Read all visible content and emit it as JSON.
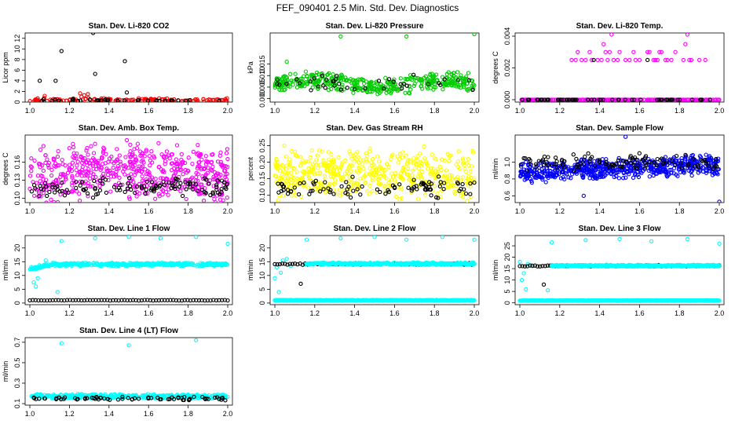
{
  "figure_title": "FEF_090401  2.5 Min. Std. Dev. Diagnostics",
  "colors": {
    "black": "#000000",
    "red": "#ff0000",
    "green": "#00cc00",
    "magenta": "#ff00ff",
    "yellow": "#ffff00",
    "blue": "#0000ff",
    "cyan": "#00ffff"
  },
  "chart_data": [
    {
      "type": "scatter",
      "title": "Stan. Dev. Li-820 CO2",
      "ylabel": "Licor ppm",
      "xlim": [
        1.0,
        2.0
      ],
      "ylim": [
        0,
        13
      ],
      "x_ticks": [
        "1.0",
        "1.2",
        "1.4",
        "1.6",
        "1.8",
        "2.0"
      ],
      "y_ticks": [
        {
          "v": 0,
          "label": "0"
        },
        {
          "v": 2,
          "label": "2"
        },
        {
          "v": 4,
          "label": "4"
        },
        {
          "v": 6,
          "label": "6"
        },
        {
          "v": 8,
          "label": "8"
        },
        {
          "v": 10,
          "label": "10"
        },
        {
          "v": 12,
          "label": "12"
        }
      ],
      "series": [
        {
          "name": "primary",
          "color": "#ff0000",
          "generator": {
            "n": 160,
            "base": 0.35,
            "spread": 0.45,
            "seed": 11,
            "clusters": [
              [
                1.25,
                1.32,
                1.6
              ],
              [
                1.07,
                1.12,
                0.9
              ]
            ]
          }
        },
        {
          "name": "reference",
          "color": "#000000",
          "generator": {
            "n": 40,
            "base": 0.3,
            "spread": 0.3,
            "seed": 21
          },
          "points": [
            [
              1.05,
              4.0
            ],
            [
              1.13,
              4.0
            ],
            [
              1.16,
              9.6
            ],
            [
              1.32,
              13.0
            ],
            [
              1.33,
              5.3
            ],
            [
              1.48,
              7.7
            ],
            [
              1.49,
              1.8
            ]
          ]
        }
      ]
    },
    {
      "type": "scatter",
      "title": "Stan. Dev. Li-820 Pressure",
      "ylabel": "kPa",
      "xlim": [
        1.0,
        2.0
      ],
      "ylim": [
        -0.0015,
        0.0285
      ],
      "x_ticks": [
        "1.0",
        "1.2",
        "1.4",
        "1.6",
        "1.8",
        "2.0"
      ],
      "y_ticks": [
        {
          "v": 0.0,
          "label": "0.000"
        },
        {
          "v": 0.005,
          "label": "0.005"
        },
        {
          "v": 0.01,
          "label": "0.010"
        },
        {
          "v": 0.015,
          "label": "0.015"
        }
      ],
      "series": [
        {
          "name": "primary",
          "color": "#00cc00",
          "generator": {
            "n": 420,
            "base": 0.0065,
            "spread": 0.0045,
            "seed": 33,
            "wave": 0.0015
          },
          "points": [
            [
              1.06,
              0.016
            ],
            [
              1.33,
              0.027
            ],
            [
              1.66,
              0.027
            ],
            [
              2.0,
              0.028
            ]
          ]
        },
        {
          "name": "reference",
          "color": "#000000",
          "generator": {
            "n": 40,
            "base": 0.0065,
            "spread": 0.004,
            "seed": 44
          }
        }
      ]
    },
    {
      "type": "scatter",
      "title": "Stan. Dev. Li-820 Temp.",
      "ylabel": "degrees C",
      "xlim": [
        1.0,
        2.0
      ],
      "ylim": [
        -0.00015,
        0.0042
      ],
      "x_ticks": [
        "1.0",
        "1.2",
        "1.4",
        "1.6",
        "1.8",
        "2.0"
      ],
      "y_ticks": [
        {
          "v": 0.0,
          "label": "0.000"
        },
        {
          "v": 0.002,
          "label": "0.002"
        },
        {
          "v": 0.004,
          "label": "0.004"
        }
      ],
      "series": [
        {
          "name": "primary",
          "color": "#ff00ff",
          "generator": {
            "n": 260,
            "base": 0.0,
            "spread": 0.0,
            "seed": 55
          },
          "points": [
            [
              1.26,
              0.0025
            ],
            [
              1.28,
              0.0025
            ],
            [
              1.29,
              0.003
            ],
            [
              1.31,
              0.0025
            ],
            [
              1.33,
              0.0025
            ],
            [
              1.35,
              0.003
            ],
            [
              1.36,
              0.0025
            ],
            [
              1.39,
              0.0025
            ],
            [
              1.41,
              0.0025
            ],
            [
              1.42,
              0.0035
            ],
            [
              1.43,
              0.003
            ],
            [
              1.44,
              0.0025
            ],
            [
              1.45,
              0.003
            ],
            [
              1.46,
              0.0041
            ],
            [
              1.47,
              0.0025
            ],
            [
              1.49,
              0.0025
            ],
            [
              1.5,
              0.003
            ],
            [
              1.53,
              0.0025
            ],
            [
              1.55,
              0.0025
            ],
            [
              1.57,
              0.003
            ],
            [
              1.58,
              0.0025
            ],
            [
              1.6,
              0.0025
            ],
            [
              1.64,
              0.003
            ],
            [
              1.65,
              0.003
            ],
            [
              1.67,
              0.0025
            ],
            [
              1.68,
              0.0025
            ],
            [
              1.69,
              0.0025
            ],
            [
              1.7,
              0.003
            ],
            [
              1.71,
              0.003
            ],
            [
              1.73,
              0.0025
            ],
            [
              1.74,
              0.0025
            ],
            [
              1.76,
              0.0025
            ],
            [
              1.78,
              0.003
            ],
            [
              1.82,
              0.0025
            ],
            [
              1.83,
              0.0035
            ],
            [
              1.84,
              0.0041
            ],
            [
              1.85,
              0.0025
            ],
            [
              1.86,
              0.0025
            ],
            [
              1.9,
              0.0025
            ],
            [
              1.93,
              0.0025
            ]
          ]
        },
        {
          "name": "reference",
          "color": "#000000",
          "generator": {
            "n": 60,
            "base": 0.0,
            "spread": 0.0,
            "seed": 66
          },
          "points": [
            [
              1.37,
              0.0025
            ],
            [
              1.64,
              0.0025
            ]
          ]
        }
      ]
    },
    {
      "type": "scatter",
      "title": "Stan. Dev. Amb. Box Temp.",
      "ylabel": "degrees C",
      "xlim": [
        1.0,
        2.0
      ],
      "ylim": [
        0.093,
        0.205
      ],
      "x_ticks": [
        "1.0",
        "1.2",
        "1.4",
        "1.6",
        "1.8",
        "2.0"
      ],
      "y_ticks": [
        {
          "v": 0.1,
          "label": "0.10"
        },
        {
          "v": 0.13,
          "label": "0.13"
        },
        {
          "v": 0.16,
          "label": "0.16"
        }
      ],
      "series": [
        {
          "name": "primary",
          "color": "#ff00ff",
          "generator": {
            "n": 560,
            "base": 0.148,
            "spread": 0.052,
            "seed": 77,
            "taper": 0.022
          }
        },
        {
          "name": "reference",
          "color": "#000000",
          "generator": {
            "n": 120,
            "base": 0.118,
            "spread": 0.018,
            "seed": 88
          }
        }
      ]
    },
    {
      "type": "scatter",
      "title": "Stan. Dev. Gas Stream RH",
      "ylabel": "percent",
      "xlim": [
        1.0,
        2.0
      ],
      "ylim": [
        0.078,
        0.282
      ],
      "x_ticks": [
        "1.0",
        "1.2",
        "1.4",
        "1.6",
        "1.8",
        "2.0"
      ],
      "y_ticks": [
        {
          "v": 0.1,
          "label": "0.10"
        },
        {
          "v": 0.15,
          "label": "0.15"
        },
        {
          "v": 0.2,
          "label": "0.20"
        },
        {
          "v": 0.25,
          "label": "0.25"
        }
      ],
      "series": [
        {
          "name": "primary",
          "color": "#ffff00",
          "generator": {
            "n": 520,
            "base": 0.165,
            "spread": 0.085,
            "seed": 99
          }
        },
        {
          "name": "reference",
          "color": "#000000",
          "generator": {
            "n": 90,
            "base": 0.125,
            "spread": 0.035,
            "seed": 111
          }
        }
      ]
    },
    {
      "type": "scatter",
      "title": "Stan. Dev. Sample Flow",
      "ylabel": "ml/min",
      "xlim": [
        1.0,
        2.0
      ],
      "ylim": [
        0.52,
        1.32
      ],
      "x_ticks": [
        "1.0",
        "1.2",
        "1.4",
        "1.6",
        "1.8",
        "2.0"
      ],
      "y_ticks": [
        {
          "v": 0.6,
          "label": "0.6"
        },
        {
          "v": 0.8,
          "label": "0.8"
        },
        {
          "v": 1.0,
          "label": "1.0"
        }
      ],
      "series": [
        {
          "name": "primary",
          "color": "#0000ff",
          "generator": {
            "n": 620,
            "base": 0.93,
            "spread": 0.14,
            "seed": 122,
            "trend": 0.1
          },
          "points": [
            [
              1.53,
              1.3
            ],
            [
              1.32,
              0.6
            ],
            [
              2.0,
              0.53
            ]
          ]
        },
        {
          "name": "reference",
          "color": "#000000",
          "generator": {
            "n": 110,
            "base": 1.0,
            "spread": 0.11,
            "seed": 133
          }
        }
      ]
    },
    {
      "type": "scatter",
      "title": "Stan. Dev. Line 1 Flow",
      "ylabel": "ml/min",
      "xlim": [
        1.0,
        2.0
      ],
      "ylim": [
        -0.6,
        24.5
      ],
      "x_ticks": [
        "1.0",
        "1.2",
        "1.4",
        "1.6",
        "1.8",
        "2.0"
      ],
      "y_ticks": [
        {
          "v": 0,
          "label": "0"
        },
        {
          "v": 5,
          "label": "5"
        },
        {
          "v": 10,
          "label": "10"
        },
        {
          "v": 15,
          "label": "15"
        },
        {
          "v": 20,
          "label": "20"
        }
      ],
      "series": [
        {
          "name": "primary",
          "color": "#00ffff",
          "generator": {
            "n": 420,
            "base": 14.0,
            "spread": 0.7,
            "seed": 144,
            "ramp": 0.12
          },
          "points": [
            [
              1.02,
              7.5
            ],
            [
              1.03,
              6.0
            ],
            [
              1.04,
              9.0
            ],
            [
              1.08,
              15.5
            ],
            [
              1.14,
              4.0
            ],
            [
              1.16,
              22.5
            ],
            [
              1.33,
              23.5
            ],
            [
              1.5,
              24.0
            ],
            [
              1.66,
              23.5
            ],
            [
              1.84,
              24.0
            ],
            [
              2.0,
              21.5
            ]
          ]
        },
        {
          "name": "reference",
          "color": "#000000",
          "generator": {
            "n": 70,
            "base": 1.0,
            "spread": 0.1,
            "seed": 155,
            "line": true
          }
        }
      ]
    },
    {
      "type": "scatter",
      "title": "Stan. Dev. Line 2 Flow",
      "ylabel": "ml/min",
      "xlim": [
        1.0,
        2.0
      ],
      "ylim": [
        -0.6,
        24.5
      ],
      "x_ticks": [
        "1.0",
        "1.2",
        "1.4",
        "1.6",
        "1.8",
        "2.0"
      ],
      "y_ticks": [
        {
          "v": 0,
          "label": "0"
        },
        {
          "v": 5,
          "label": "5"
        },
        {
          "v": 10,
          "label": "10"
        },
        {
          "v": 15,
          "label": "15"
        },
        {
          "v": 20,
          "label": "20"
        }
      ],
      "series": [
        {
          "name": "primary",
          "color": "#00ffff",
          "generator": {
            "n": 420,
            "base": 1.0,
            "spread": 0.15,
            "seed": 166,
            "line": true
          },
          "points": [
            [
              1.0,
              9.0
            ],
            [
              1.01,
              13.0
            ],
            [
              1.02,
              4.0
            ],
            [
              1.03,
              11.0
            ],
            [
              1.04,
              15.5
            ],
            [
              1.06,
              16.0
            ],
            [
              1.08,
              13.5
            ],
            [
              1.15,
              14.0
            ],
            [
              1.16,
              23.0
            ],
            [
              1.33,
              23.5
            ],
            [
              1.5,
              24.0
            ],
            [
              1.66,
              23.0
            ],
            [
              1.84,
              24.0
            ],
            [
              2.0,
              23.0
            ]
          ]
        },
        {
          "name": "reference",
          "color": "#000000",
          "generator": {
            "n": 80,
            "base": 14.2,
            "spread": 0.35,
            "seed": 177,
            "line": true
          },
          "points": [
            [
              1.13,
              7.0
            ]
          ]
        },
        {
          "name": "primary-band",
          "color": "#00ffff",
          "generator": {
            "n": 320,
            "base": 14.3,
            "spread": 0.5,
            "seed": 188,
            "line": true,
            "start": 1.16
          }
        }
      ]
    },
    {
      "type": "scatter",
      "title": "Stan. Dev. Line 3 Flow",
      "ylabel": "ml/min",
      "xlim": [
        1.0,
        2.0
      ],
      "ylim": [
        -0.8,
        29.5
      ],
      "x_ticks": [
        "1.0",
        "1.2",
        "1.4",
        "1.6",
        "1.8",
        "2.0"
      ],
      "y_ticks": [
        {
          "v": 0,
          "label": "0"
        },
        {
          "v": 5,
          "label": "5"
        },
        {
          "v": 10,
          "label": "10"
        },
        {
          "v": 15,
          "label": "15"
        },
        {
          "v": 20,
          "label": "20"
        },
        {
          "v": 25,
          "label": "25"
        }
      ],
      "series": [
        {
          "name": "primary",
          "color": "#00ffff",
          "generator": {
            "n": 420,
            "base": 1.0,
            "spread": 0.15,
            "seed": 199,
            "line": true
          },
          "points": [
            [
              1.0,
              18.0
            ],
            [
              1.01,
              10.0
            ],
            [
              1.02,
              13.0
            ],
            [
              1.03,
              6.0
            ],
            [
              1.04,
              17.0
            ],
            [
              1.06,
              16.5
            ],
            [
              1.14,
              5.5
            ],
            [
              1.16,
              26.5
            ],
            [
              1.33,
              27.5
            ],
            [
              1.5,
              28.0
            ],
            [
              1.66,
              27.0
            ],
            [
              1.84,
              28.0
            ],
            [
              2.0,
              26.0
            ]
          ]
        },
        {
          "name": "reference",
          "color": "#000000",
          "generator": {
            "n": 80,
            "base": 16.2,
            "spread": 0.35,
            "seed": 211,
            "line": true
          },
          "points": [
            [
              1.12,
              8.0
            ]
          ]
        },
        {
          "name": "primary-band",
          "color": "#00ffff",
          "generator": {
            "n": 320,
            "base": 16.3,
            "spread": 0.5,
            "seed": 222,
            "line": true,
            "start": 1.16
          }
        }
      ]
    },
    {
      "type": "scatter",
      "title": "Stan. Dev. Line 4 (LT) Flow",
      "ylabel": "ml/min",
      "xlim": [
        1.0,
        2.0
      ],
      "ylim": [
        0.085,
        0.745
      ],
      "x_ticks": [
        "1.0",
        "1.2",
        "1.4",
        "1.6",
        "1.8",
        "2.0"
      ],
      "y_ticks": [
        {
          "v": 0.1,
          "label": "0.1"
        },
        {
          "v": 0.3,
          "label": "0.3"
        },
        {
          "v": 0.5,
          "label": "0.5"
        },
        {
          "v": 0.7,
          "label": "0.7"
        }
      ],
      "series": [
        {
          "name": "primary",
          "color": "#00ffff",
          "generator": {
            "n": 420,
            "base": 0.17,
            "spread": 0.025,
            "seed": 233
          },
          "points": [
            [
              1.16,
              0.69
            ],
            [
              1.5,
              0.67
            ],
            [
              1.84,
              0.72
            ]
          ]
        },
        {
          "name": "reference",
          "color": "#000000",
          "generator": {
            "n": 70,
            "base": 0.15,
            "spread": 0.02,
            "seed": 244
          }
        }
      ]
    }
  ]
}
